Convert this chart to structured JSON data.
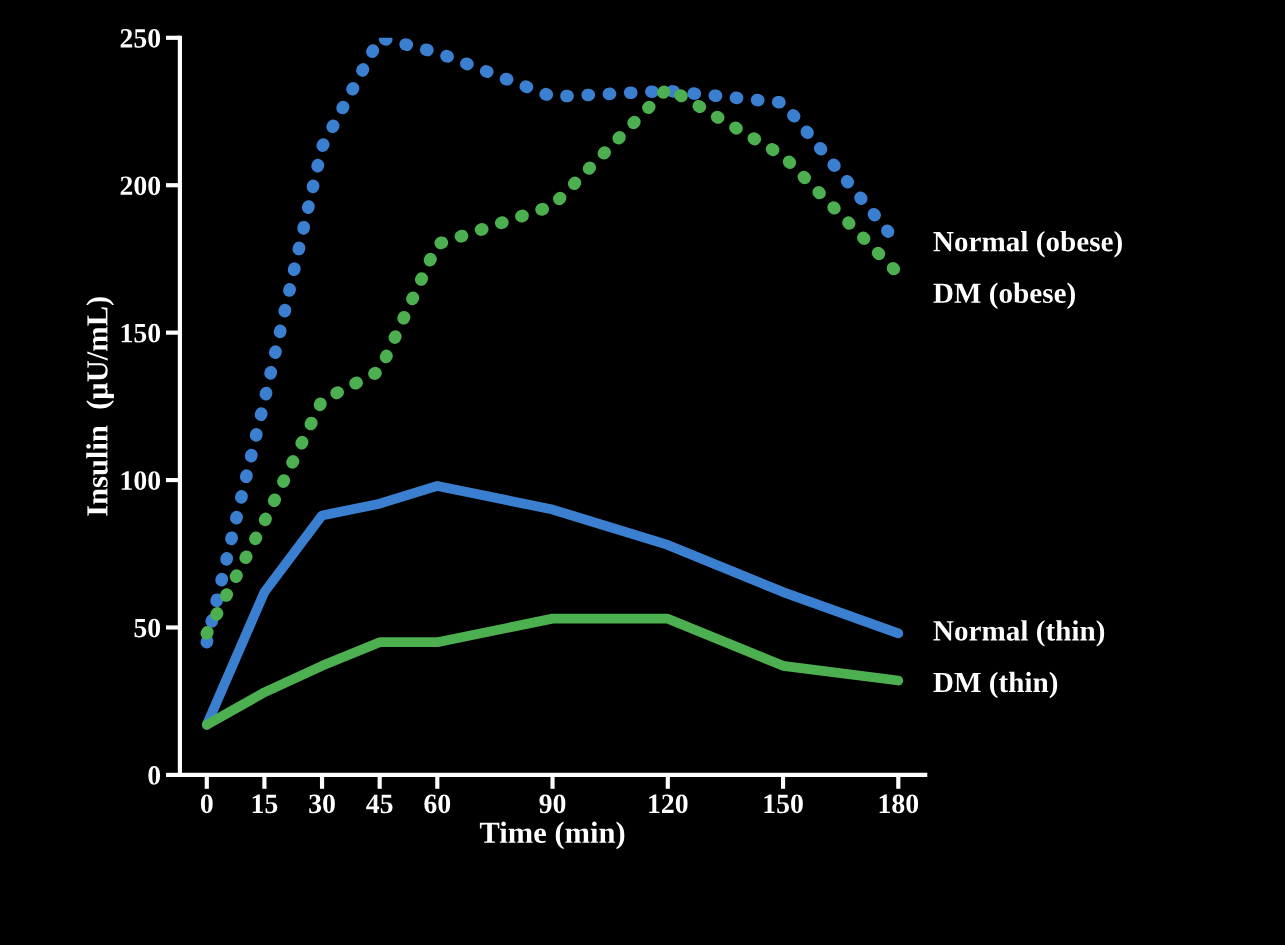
{
  "chart_data": {
    "type": "line",
    "xlabel": "Time (min)",
    "ylabel": "Insulin  (μU/mL)",
    "x": [
      0,
      15,
      30,
      45,
      60,
      90,
      120,
      150,
      180
    ],
    "xlim": [
      -7,
      187
    ],
    "xticks": [
      0,
      15,
      30,
      45,
      60,
      90,
      120,
      150,
      180
    ],
    "ylim": [
      0,
      250
    ],
    "yticks": [
      0,
      50,
      100,
      150,
      200,
      250
    ],
    "grid": false,
    "legend": false,
    "marker": "none",
    "series": [
      {
        "name": "Normal (obese)",
        "color": "#3a7fd0",
        "line_style": "dotted",
        "values": [
          45,
          127,
          213,
          250,
          245,
          230,
          232,
          228,
          180
        ]
      },
      {
        "name": "DM (obese)",
        "color": "#4caf50",
        "line_style": "dotted",
        "values": [
          48,
          86,
          127,
          137,
          180,
          193,
          233,
          210,
          170
        ]
      },
      {
        "name": "Normal (thin)",
        "color": "#3a7fd0",
        "line_style": "solid",
        "values": [
          17,
          62,
          88,
          92,
          98,
          90,
          78,
          62,
          48
        ]
      },
      {
        "name": "DM (thin)",
        "color": "#4caf50",
        "line_style": "solid",
        "values": [
          17,
          28,
          37,
          45,
          45,
          53,
          53,
          37,
          32
        ]
      }
    ]
  }
}
